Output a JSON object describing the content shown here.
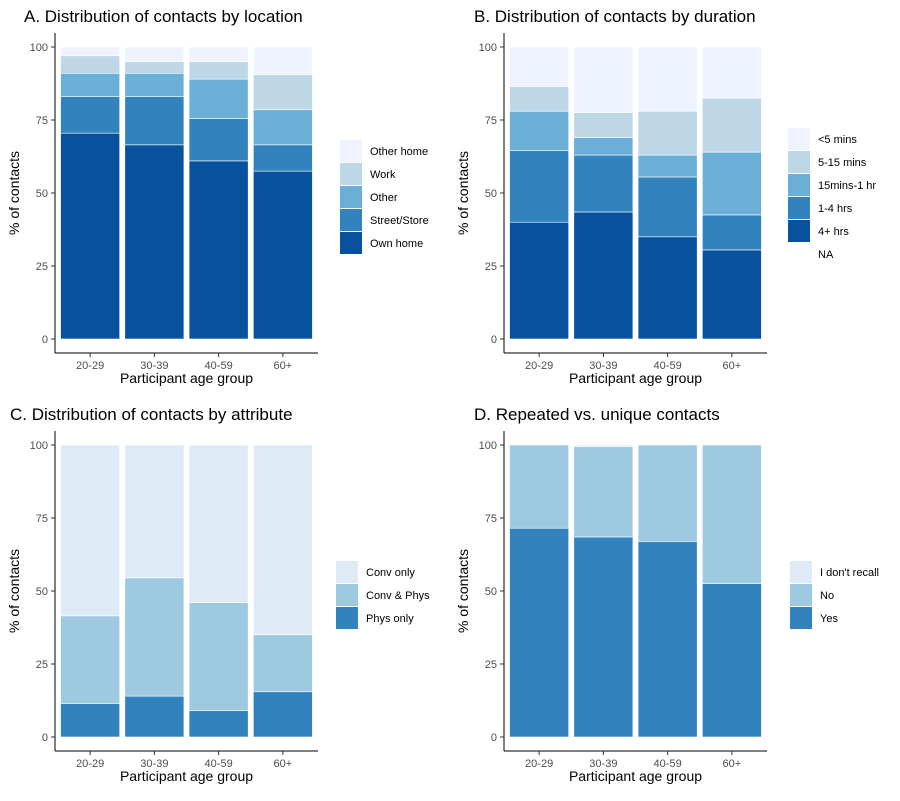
{
  "chart_data": [
    {
      "type": "bar",
      "stacked": true,
      "title": "A. Distribution of contacts by location",
      "xlabel": "Participant age group",
      "ylabel": "% of contacts",
      "categories": [
        "20-29",
        "30-39",
        "40-59",
        "60+"
      ],
      "ylim": [
        0,
        100
      ],
      "yticks": [
        0,
        25,
        50,
        75,
        100
      ],
      "legend_position": "right",
      "series": [
        {
          "name": "Own home",
          "color": "#08519c",
          "values": [
            70.5,
            66.5,
            61,
            57.5
          ]
        },
        {
          "name": "Street/Store",
          "color": "#3182bd",
          "values": [
            12.5,
            16.5,
            14.5,
            9
          ]
        },
        {
          "name": "Other",
          "color": "#6baed6",
          "values": [
            8,
            8,
            13.5,
            12
          ]
        },
        {
          "name": "Work",
          "color": "#bdd7e7",
          "values": [
            6,
            4,
            6,
            12
          ]
        },
        {
          "name": "Other home",
          "color": "#eff3ff",
          "values": [
            3,
            5,
            5,
            9.5
          ]
        }
      ],
      "legend": [
        "Other home",
        "Work",
        "Other",
        "Street/Store",
        "Own home"
      ]
    },
    {
      "type": "bar",
      "stacked": true,
      "title": "B. Distribution of contacts by duration",
      "xlabel": "Participant age group",
      "ylabel": "% of contacts",
      "categories": [
        "20-29",
        "30-39",
        "40-59",
        "60+"
      ],
      "ylim": [
        0,
        100
      ],
      "yticks": [
        0,
        25,
        50,
        75,
        100
      ],
      "legend_position": "right",
      "series": [
        {
          "name": "4+ hrs",
          "color": "#08519c",
          "values": [
            40,
            43.5,
            35,
            30.5
          ]
        },
        {
          "name": "1-4 hrs",
          "color": "#3182bd",
          "values": [
            24.5,
            19.5,
            20.5,
            12
          ]
        },
        {
          "name": "15mins-1 hr",
          "color": "#6baed6",
          "values": [
            13.5,
            6,
            7.5,
            21.5
          ]
        },
        {
          "name": "5-15 mins",
          "color": "#bdd7e7",
          "values": [
            8.5,
            8.5,
            15,
            18.5
          ]
        },
        {
          "name": "<5 mins",
          "color": "#eff3ff",
          "values": [
            13.5,
            22.5,
            22,
            17.5
          ]
        }
      ],
      "legend": [
        "<5 mins",
        "5-15 mins",
        "15mins-1 hr",
        "1-4 hrs",
        "4+ hrs",
        "NA"
      ]
    },
    {
      "type": "bar",
      "stacked": true,
      "title": "C. Distribution of contacts by attribute",
      "xlabel": "Participant age group",
      "ylabel": "% of contacts",
      "categories": [
        "20-29",
        "30-39",
        "40-59",
        "60+"
      ],
      "ylim": [
        0,
        100
      ],
      "yticks": [
        0,
        25,
        50,
        75,
        100
      ],
      "legend_position": "right",
      "series": [
        {
          "name": "Phys only",
          "color": "#3182bd",
          "values": [
            11.5,
            14,
            9,
            15.5
          ]
        },
        {
          "name": "Conv & Phys",
          "color": "#9ecae1",
          "values": [
            30,
            40.5,
            37,
            19.5
          ]
        },
        {
          "name": "Conv only",
          "color": "#deebf7",
          "values": [
            58.5,
            45.5,
            54,
            65
          ]
        }
      ],
      "legend": [
        "Conv only",
        "Conv & Phys",
        "Phys only"
      ]
    },
    {
      "type": "bar",
      "stacked": true,
      "title": "D. Repeated vs. unique contacts",
      "xlabel": "Participant age group",
      "ylabel": "% of contacts",
      "categories": [
        "20-29",
        "30-39",
        "40-59",
        "60+"
      ],
      "ylim": [
        0,
        100
      ],
      "yticks": [
        0,
        25,
        50,
        75,
        100
      ],
      "legend_position": "right",
      "series": [
        {
          "name": "Yes",
          "color": "#3182bd",
          "values": [
            71.5,
            68.5,
            67,
            52.5
          ]
        },
        {
          "name": "No",
          "color": "#9ecae1",
          "values": [
            28.5,
            31,
            33,
            47.5
          ]
        },
        {
          "name": "I don't recall",
          "color": "#deebf7",
          "values": [
            0,
            0.5,
            0,
            0
          ]
        }
      ],
      "legend": [
        "I don't recall",
        "No",
        "Yes"
      ]
    }
  ]
}
